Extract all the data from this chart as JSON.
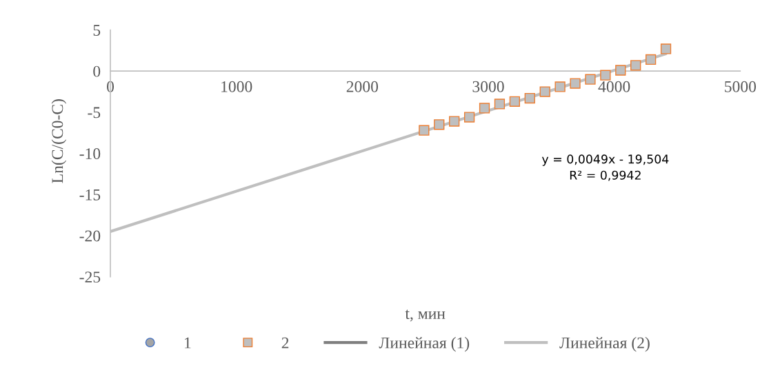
{
  "chart_data": {
    "type": "scatter",
    "xlabel": "t, мин",
    "ylabel": "Ln(C/(C0-C)",
    "xlim": [
      0,
      5000
    ],
    "xticks": [
      0,
      1000,
      2000,
      3000,
      4000,
      5000
    ],
    "ylim": [
      -25,
      5
    ],
    "yticks": [
      -25,
      -20,
      -15,
      -10,
      -5,
      0,
      5
    ],
    "grid": false,
    "legend": "bottom",
    "annotations": [
      "y = 0,0049x - 19,504\nR² = 0,9942"
    ],
    "x": [
      2490,
      2610,
      2730,
      2850,
      2970,
      3090,
      3210,
      3330,
      3450,
      3570,
      3690,
      3810,
      3930,
      4050,
      4170,
      4290,
      4410
    ],
    "series": [
      {
        "name": "1",
        "marker": "circle",
        "color": "#a5a5a5",
        "values": [
          null,
          null,
          null,
          null,
          null,
          null,
          null,
          null,
          null,
          null,
          null,
          null,
          null,
          null,
          null,
          null,
          null
        ]
      },
      {
        "name": "2",
        "marker": "square",
        "color": "#bfbfbf",
        "values": [
          -7.2,
          -6.5,
          -6.1,
          -5.6,
          -4.5,
          -4.0,
          -3.7,
          -3.3,
          -2.5,
          -1.9,
          -1.5,
          -1.0,
          -0.5,
          0.1,
          0.7,
          1.4,
          2.7
        ]
      },
      {
        "name": "Линейная (1)",
        "type": "line",
        "marker": "none",
        "color": "#7f7f7f",
        "values": [
          null,
          null,
          null,
          null,
          null,
          null,
          null,
          null,
          null,
          null,
          null,
          null,
          null,
          null,
          null,
          null,
          null
        ]
      },
      {
        "name": "Линейная (2)",
        "type": "line",
        "marker": "none",
        "color": "#bfbfbf",
        "x": [
          0,
          4410
        ],
        "values": [
          -19.5,
          2.1
        ]
      }
    ]
  }
}
